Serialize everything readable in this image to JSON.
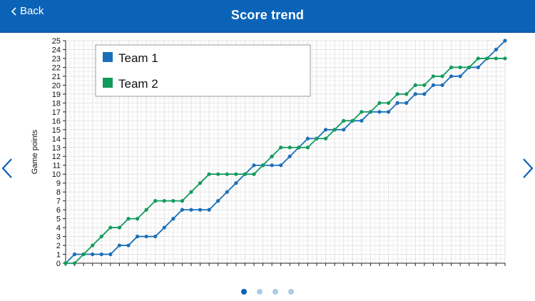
{
  "header": {
    "back_label": "Back",
    "title": "Score trend"
  },
  "colors": {
    "header_bg": "#0b63b8",
    "team1": "#1a6fb8",
    "team2": "#129a5c"
  },
  "icons": {
    "back": "chevron-left-icon",
    "prev": "chevron-left-icon",
    "next": "chevron-right-icon"
  },
  "pagination": {
    "count": 4,
    "active": 0
  },
  "chart_data": {
    "type": "line",
    "title": "",
    "xlabel": "",
    "ylabel": "Game points",
    "ylim": [
      0,
      25
    ],
    "xlim": [
      0,
      49
    ],
    "yticks": [
      0,
      1,
      2,
      3,
      4,
      5,
      6,
      7,
      8,
      9,
      10,
      11,
      12,
      13,
      14,
      15,
      16,
      17,
      18,
      19,
      20,
      21,
      22,
      23,
      24,
      25
    ],
    "grid": true,
    "legend_position": "top-left",
    "series": [
      {
        "name": "Team 1",
        "color": "#1a6fb8",
        "values": [
          0,
          1,
          1,
          1,
          1,
          1,
          2,
          2,
          3,
          3,
          3,
          4,
          5,
          6,
          6,
          6,
          6,
          7,
          8,
          9,
          10,
          11,
          11,
          11,
          11,
          12,
          13,
          14,
          14,
          15,
          15,
          15,
          16,
          16,
          17,
          17,
          17,
          18,
          18,
          19,
          19,
          20,
          20,
          21,
          21,
          22,
          22,
          23,
          24,
          25
        ]
      },
      {
        "name": "Team 2",
        "color": "#129a5c",
        "values": [
          0,
          0,
          1,
          2,
          3,
          4,
          4,
          5,
          5,
          6,
          7,
          7,
          7,
          7,
          8,
          9,
          10,
          10,
          10,
          10,
          10,
          10,
          11,
          12,
          13,
          13,
          13,
          13,
          14,
          14,
          15,
          16,
          16,
          17,
          17,
          18,
          18,
          19,
          19,
          20,
          20,
          21,
          21,
          22,
          22,
          22,
          23,
          23,
          23,
          23
        ]
      }
    ]
  }
}
